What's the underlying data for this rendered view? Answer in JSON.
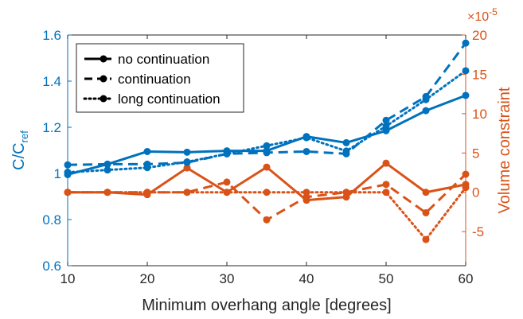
{
  "chart_data": {
    "type": "line",
    "xlabel": "Minimum overhang angle [degrees]",
    "ylabel_left": "C/C",
    "ylabel_left_sub": "ref",
    "ylabel_right": "Volume constraint",
    "right_axis_multiplier": "×10",
    "right_axis_exponent": "-5",
    "xlim": [
      10,
      60
    ],
    "ylim_left": [
      0.6,
      1.6
    ],
    "ylim_right": [
      -9.33,
      20
    ],
    "x_ticks": [
      10,
      20,
      30,
      40,
      50,
      60
    ],
    "left_ticks": [
      0.6,
      0.8,
      1,
      1.2,
      1.4,
      1.6
    ],
    "left_tick_labels": [
      "0.6",
      "0.8",
      "1",
      "1.2",
      "1.4",
      "1.6"
    ],
    "right_ticks": [
      -5,
      0,
      5,
      10,
      15,
      20
    ],
    "right_tick_labels": [
      "-5",
      "0",
      "5",
      "10",
      "15",
      "20"
    ],
    "x": [
      10,
      15,
      20,
      25,
      30,
      35,
      40,
      45,
      50,
      55,
      60
    ],
    "colors": {
      "left_axis": "#0072BD",
      "right_axis": "#D95319"
    },
    "legend": {
      "placement": "top-left",
      "entries": [
        {
          "label": "no continuation",
          "style": "solid"
        },
        {
          "label": "continuation",
          "style": "dashed"
        },
        {
          "label": "long continuation",
          "style": "dotted"
        }
      ]
    },
    "series": [
      {
        "axis": "left",
        "style": "solid",
        "color": "#0072BD",
        "values": [
          0.995,
          1.04,
          1.095,
          1.092,
          1.098,
          1.098,
          1.16,
          1.133,
          1.185,
          1.272,
          1.338
        ]
      },
      {
        "axis": "left",
        "style": "dashed",
        "color": "#0072BD",
        "values": [
          1.037,
          1.04,
          1.04,
          1.047,
          1.085,
          1.09,
          1.095,
          1.085,
          1.23,
          1.333,
          1.565
        ]
      },
      {
        "axis": "left",
        "style": "dotted",
        "color": "#0072BD",
        "values": [
          1.005,
          1.015,
          1.025,
          1.05,
          1.085,
          1.12,
          1.155,
          1.097,
          1.205,
          1.32,
          1.445
        ]
      },
      {
        "axis": "right",
        "style": "solid",
        "color": "#D95319",
        "values": [
          0,
          0,
          -0.3,
          3.1,
          0,
          3.2,
          -1.0,
          -0.6,
          3.7,
          0,
          1.0
        ]
      },
      {
        "axis": "right",
        "style": "dashed",
        "color": "#D95319",
        "values": [
          0,
          0,
          0,
          0,
          1.3,
          -3.5,
          -0.6,
          0,
          1.0,
          -2.6,
          2.3
        ]
      },
      {
        "axis": "right",
        "style": "dotted",
        "color": "#D95319",
        "values": [
          0,
          0,
          0,
          0,
          0,
          0,
          0,
          0,
          0,
          -6.0,
          0.6
        ]
      }
    ]
  }
}
